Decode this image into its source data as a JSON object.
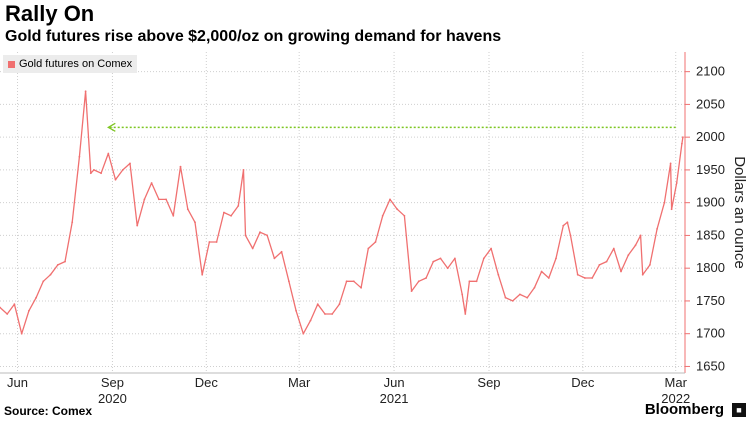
{
  "header": {
    "title": "Rally On",
    "subtitle": "Gold futures rise above $2,000/oz on growing demand for havens"
  },
  "legend": {
    "label": "Gold futures on Comex"
  },
  "footer": {
    "source": "Source: Comex",
    "brand": "Bloomberg",
    "brand_icon": "bloomberg-terminal-icon"
  },
  "colors": {
    "series": "#f07070",
    "annotation": "#7ec622",
    "grid": "#cfcfcf",
    "axis": "#f07070"
  },
  "chart_data": {
    "type": "line",
    "title": "Rally On",
    "subtitle": "Gold futures rise above $2,000/oz on growing demand for havens",
    "ylabel": "Dollars an ounce",
    "xlabel": "",
    "ylim": [
      1640,
      2130
    ],
    "yticks": [
      1650,
      1700,
      1750,
      1800,
      1850,
      1900,
      1950,
      2000,
      2050,
      2100
    ],
    "xlim": [
      "2020-05-15",
      "2022-03-10"
    ],
    "xticks": [
      {
        "date": "2020-06-01",
        "label": "Jun",
        "year": ""
      },
      {
        "date": "2020-09-01",
        "label": "Sep",
        "year": "2020"
      },
      {
        "date": "2020-12-01",
        "label": "Dec",
        "year": ""
      },
      {
        "date": "2021-03-01",
        "label": "Mar",
        "year": ""
      },
      {
        "date": "2021-06-01",
        "label": "Jun",
        "year": "2021"
      },
      {
        "date": "2021-09-01",
        "label": "Sep",
        "year": ""
      },
      {
        "date": "2021-12-01",
        "label": "Dec",
        "year": ""
      },
      {
        "date": "2022-03-01",
        "label": "Mar",
        "year": "2022"
      }
    ],
    "grid": true,
    "legend_position": "top-left",
    "y_axis_side": "right",
    "series": [
      {
        "name": "Gold futures on Comex",
        "points": [
          [
            "2020-05-15",
            1740
          ],
          [
            "2020-05-22",
            1730
          ],
          [
            "2020-05-29",
            1745
          ],
          [
            "2020-06-05",
            1700
          ],
          [
            "2020-06-12",
            1735
          ],
          [
            "2020-06-19",
            1755
          ],
          [
            "2020-06-26",
            1780
          ],
          [
            "2020-07-03",
            1790
          ],
          [
            "2020-07-10",
            1805
          ],
          [
            "2020-07-17",
            1810
          ],
          [
            "2020-07-24",
            1870
          ],
          [
            "2020-07-31",
            1970
          ],
          [
            "2020-08-06",
            2070
          ],
          [
            "2020-08-11",
            1945
          ],
          [
            "2020-08-14",
            1950
          ],
          [
            "2020-08-21",
            1945
          ],
          [
            "2020-08-28",
            1975
          ],
          [
            "2020-09-04",
            1935
          ],
          [
            "2020-09-11",
            1950
          ],
          [
            "2020-09-18",
            1960
          ],
          [
            "2020-09-25",
            1865
          ],
          [
            "2020-10-02",
            1905
          ],
          [
            "2020-10-09",
            1930
          ],
          [
            "2020-10-16",
            1905
          ],
          [
            "2020-10-23",
            1905
          ],
          [
            "2020-10-30",
            1880
          ],
          [
            "2020-11-06",
            1955
          ],
          [
            "2020-11-13",
            1890
          ],
          [
            "2020-11-20",
            1870
          ],
          [
            "2020-11-27",
            1790
          ],
          [
            "2020-12-04",
            1840
          ],
          [
            "2020-12-11",
            1840
          ],
          [
            "2020-12-18",
            1885
          ],
          [
            "2020-12-25",
            1880
          ],
          [
            "2021-01-01",
            1895
          ],
          [
            "2021-01-06",
            1950
          ],
          [
            "2021-01-08",
            1850
          ],
          [
            "2021-01-15",
            1830
          ],
          [
            "2021-01-22",
            1855
          ],
          [
            "2021-01-29",
            1850
          ],
          [
            "2021-02-05",
            1815
          ],
          [
            "2021-02-12",
            1825
          ],
          [
            "2021-02-19",
            1780
          ],
          [
            "2021-02-26",
            1735
          ],
          [
            "2021-03-05",
            1700
          ],
          [
            "2021-03-12",
            1720
          ],
          [
            "2021-03-19",
            1745
          ],
          [
            "2021-03-26",
            1730
          ],
          [
            "2021-04-02",
            1730
          ],
          [
            "2021-04-09",
            1745
          ],
          [
            "2021-04-16",
            1780
          ],
          [
            "2021-04-23",
            1780
          ],
          [
            "2021-04-30",
            1770
          ],
          [
            "2021-05-07",
            1830
          ],
          [
            "2021-05-14",
            1840
          ],
          [
            "2021-05-21",
            1880
          ],
          [
            "2021-05-28",
            1905
          ],
          [
            "2021-06-04",
            1890
          ],
          [
            "2021-06-11",
            1880
          ],
          [
            "2021-06-18",
            1765
          ],
          [
            "2021-06-25",
            1780
          ],
          [
            "2021-07-02",
            1785
          ],
          [
            "2021-07-09",
            1810
          ],
          [
            "2021-07-16",
            1815
          ],
          [
            "2021-07-23",
            1800
          ],
          [
            "2021-07-30",
            1815
          ],
          [
            "2021-08-06",
            1760
          ],
          [
            "2021-08-09",
            1730
          ],
          [
            "2021-08-13",
            1780
          ],
          [
            "2021-08-20",
            1780
          ],
          [
            "2021-08-27",
            1815
          ],
          [
            "2021-09-03",
            1830
          ],
          [
            "2021-09-10",
            1790
          ],
          [
            "2021-09-17",
            1755
          ],
          [
            "2021-09-24",
            1750
          ],
          [
            "2021-10-01",
            1760
          ],
          [
            "2021-10-08",
            1755
          ],
          [
            "2021-10-15",
            1770
          ],
          [
            "2021-10-22",
            1795
          ],
          [
            "2021-10-29",
            1785
          ],
          [
            "2021-11-05",
            1815
          ],
          [
            "2021-11-12",
            1865
          ],
          [
            "2021-11-16",
            1870
          ],
          [
            "2021-11-19",
            1850
          ],
          [
            "2021-11-26",
            1790
          ],
          [
            "2021-12-03",
            1785
          ],
          [
            "2021-12-10",
            1785
          ],
          [
            "2021-12-17",
            1805
          ],
          [
            "2021-12-24",
            1810
          ],
          [
            "2021-12-31",
            1830
          ],
          [
            "2022-01-07",
            1795
          ],
          [
            "2022-01-14",
            1820
          ],
          [
            "2022-01-21",
            1835
          ],
          [
            "2022-01-26",
            1850
          ],
          [
            "2022-01-28",
            1790
          ],
          [
            "2022-02-04",
            1805
          ],
          [
            "2022-02-11",
            1860
          ],
          [
            "2022-02-18",
            1900
          ],
          [
            "2022-02-24",
            1960
          ],
          [
            "2022-02-25",
            1890
          ],
          [
            "2022-03-02",
            1930
          ],
          [
            "2022-03-07",
            1990
          ],
          [
            "2022-03-08",
            2000
          ]
        ]
      }
    ],
    "annotations": [
      {
        "type": "arrow-line",
        "y": 2015,
        "x_from": "2022-03-01",
        "x_to": "2020-08-28",
        "direction": "left",
        "style": "dotted",
        "color": "#7ec622"
      }
    ]
  }
}
